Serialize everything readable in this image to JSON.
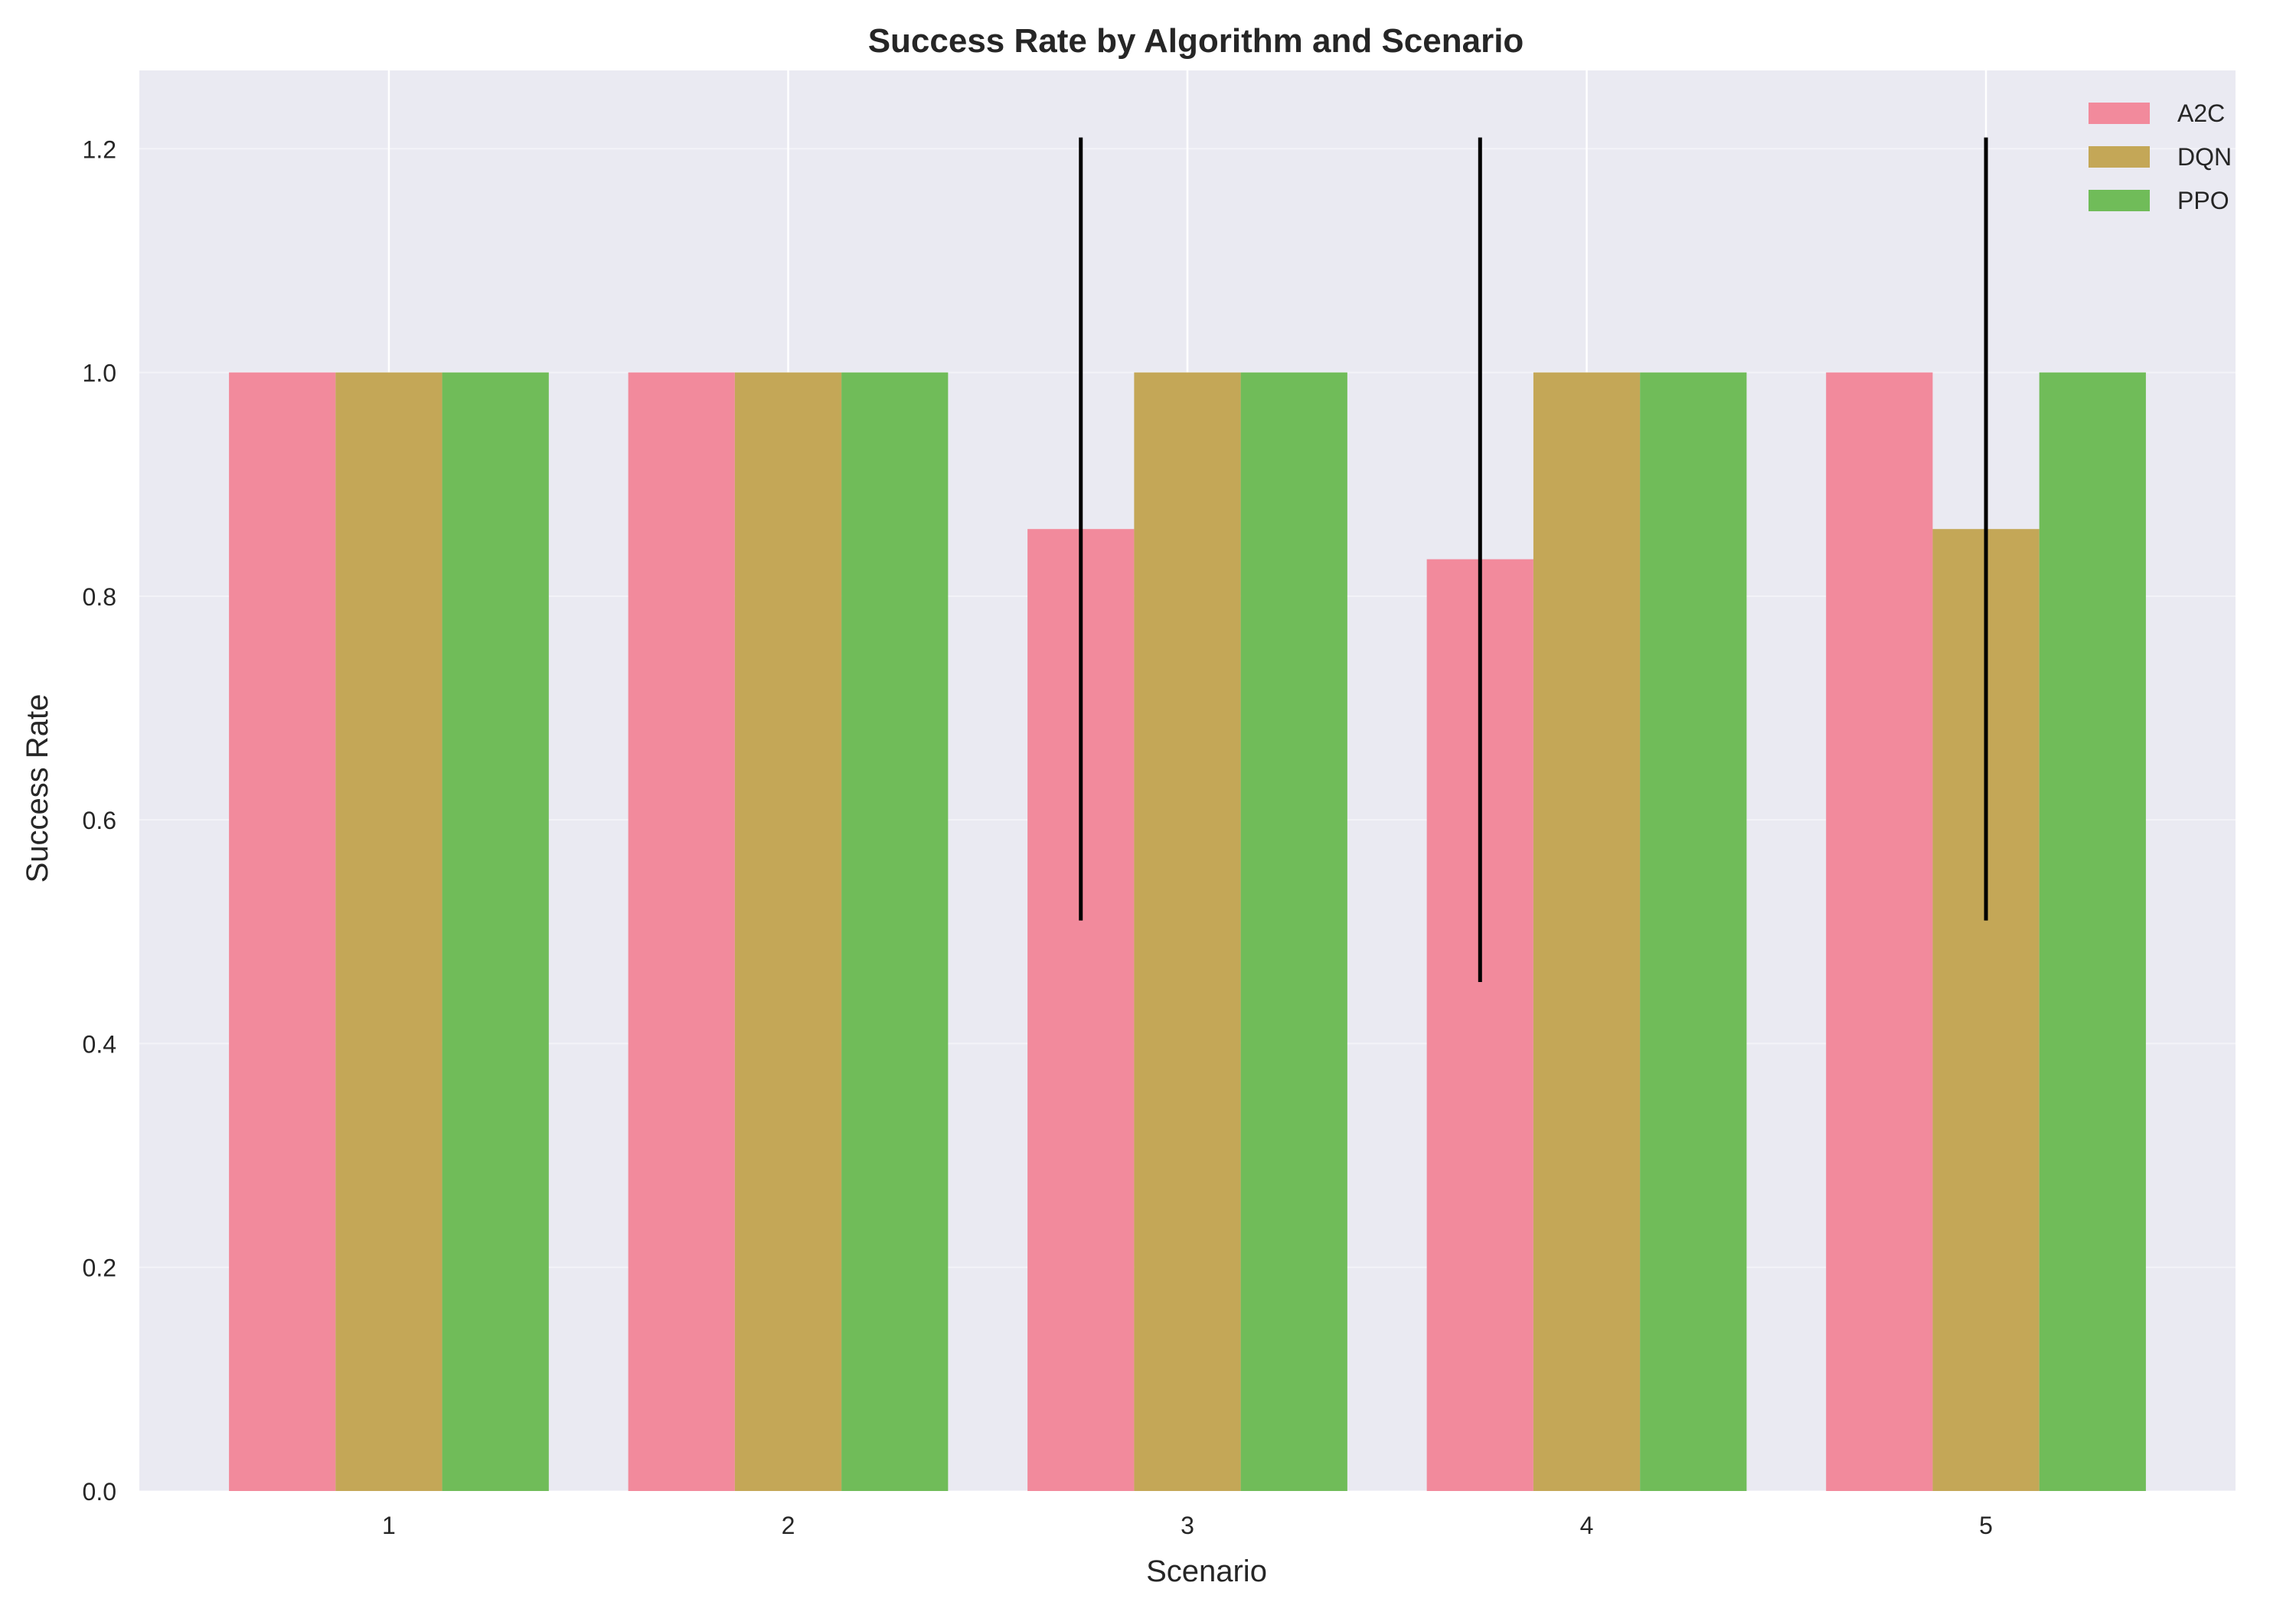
{
  "chart_data": {
    "type": "bar",
    "title": "Success Rate by Algorithm and Scenario",
    "xlabel": "Scenario",
    "ylabel": "Success Rate",
    "categories": [
      "1",
      "2",
      "3",
      "4",
      "5"
    ],
    "ylim": [
      0,
      1.27
    ],
    "yticks": [
      0.0,
      0.2,
      0.4,
      0.6,
      0.8,
      1.0,
      1.2
    ],
    "ytick_labels": [
      "0.0",
      "0.2",
      "0.4",
      "0.6",
      "0.8",
      "1.0",
      "1.2"
    ],
    "grid": true,
    "legend_position": "top-right",
    "series": [
      {
        "name": "A2C",
        "color": "#f28a9c",
        "values": [
          1.0,
          1.0,
          0.86,
          0.833,
          1.0
        ],
        "error_low": [
          null,
          null,
          0.51,
          0.455,
          null
        ],
        "error_high": [
          null,
          null,
          1.21,
          1.21,
          null
        ]
      },
      {
        "name": "DQN",
        "color": "#c4a757",
        "values": [
          1.0,
          1.0,
          1.0,
          1.0,
          0.86
        ],
        "error_low": [
          null,
          null,
          null,
          null,
          0.51
        ],
        "error_high": [
          null,
          null,
          null,
          null,
          1.21
        ]
      },
      {
        "name": "PPO",
        "color": "#70bc59",
        "values": [
          1.0,
          1.0,
          1.0,
          1.0,
          1.0
        ],
        "error_low": [
          null,
          null,
          null,
          null,
          null
        ],
        "error_high": [
          null,
          null,
          null,
          null,
          null
        ]
      }
    ]
  },
  "colors": {
    "plot_background": "#eaeaf2",
    "grid": "#ffffff",
    "error_bar": "#000000",
    "text": "#262626"
  }
}
